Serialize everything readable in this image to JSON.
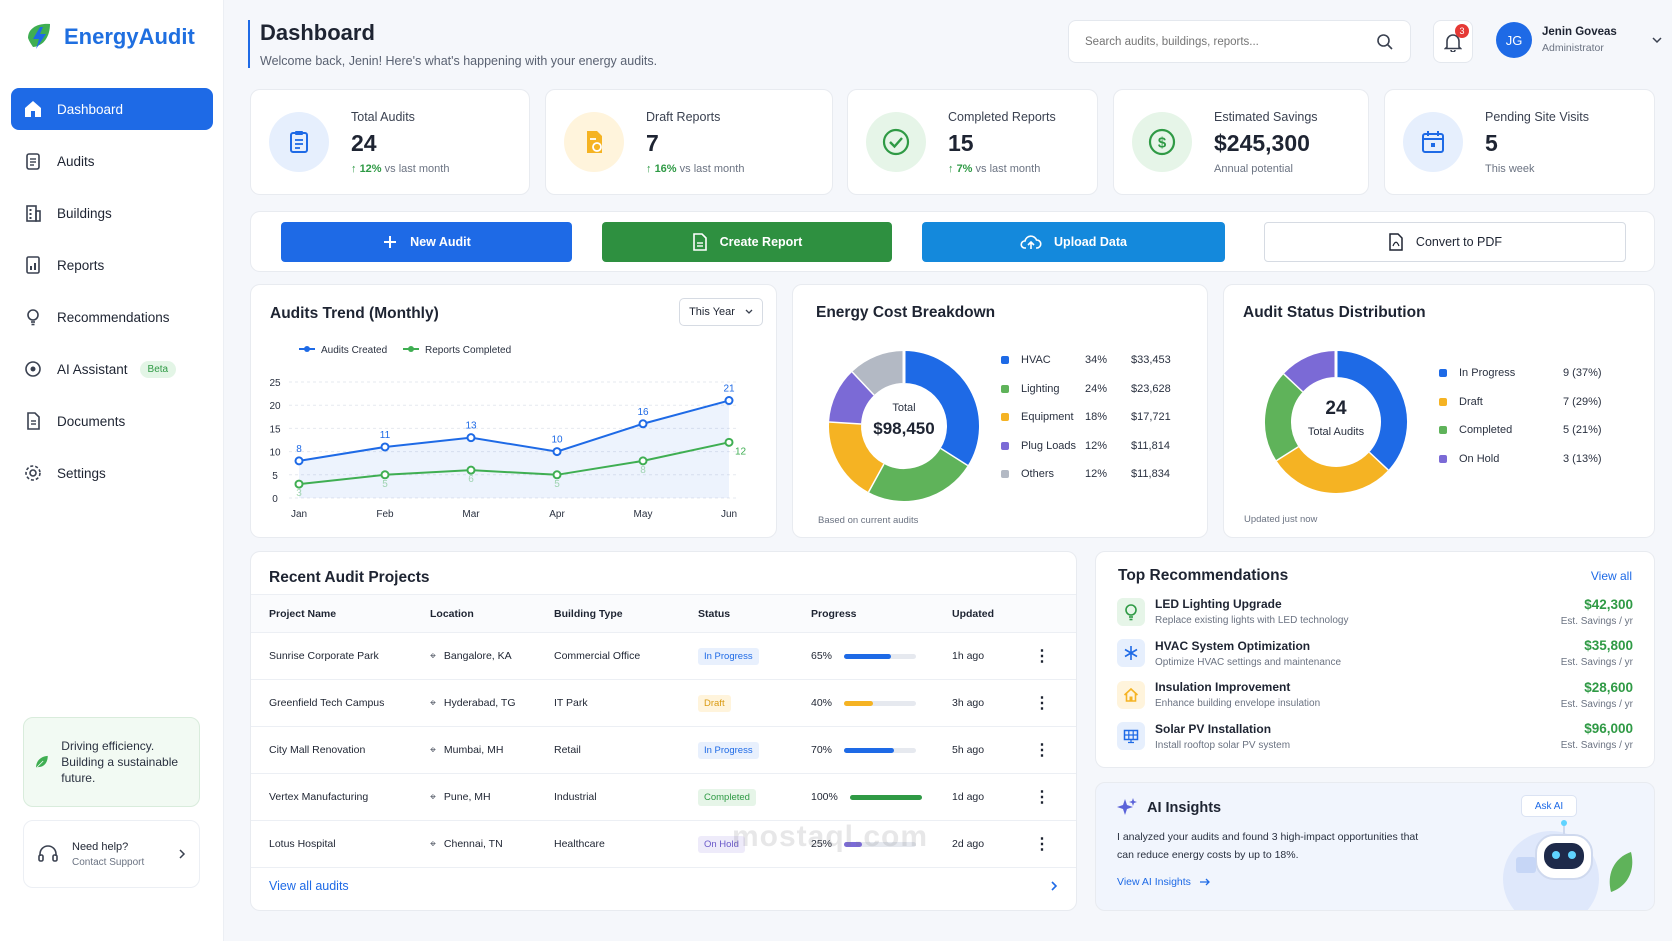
{
  "app": {
    "name": "EnergyAudit"
  },
  "sidebar": {
    "items": [
      {
        "label": "Dashboard",
        "icon": "home-icon"
      },
      {
        "label": "Audits",
        "icon": "clipboard-icon"
      },
      {
        "label": "Buildings",
        "icon": "building-icon"
      },
      {
        "label": "Reports",
        "icon": "report-icon"
      },
      {
        "label": "Recommendations",
        "icon": "lightbulb-icon"
      },
      {
        "label": "AI Assistant",
        "icon": "ai-icon",
        "badge": "Beta"
      },
      {
        "label": "Documents",
        "icon": "document-icon"
      },
      {
        "label": "Settings",
        "icon": "gear-icon"
      }
    ],
    "promo": "Driving efficiency. Building a sustainable future.",
    "help": {
      "title": "Need help?",
      "subtitle": "Contact Support"
    }
  },
  "header": {
    "title": "Dashboard",
    "subtitle": "Welcome back, Jenin! Here's what's happening with your energy audits.",
    "search_placeholder": "Search audits, buildings, reports...",
    "notifications": "3",
    "user": {
      "initials": "JG",
      "name": "Jenin Goveas",
      "role": "Administrator"
    }
  },
  "stats": [
    {
      "label": "Total Audits",
      "value": "24",
      "delta": "12%",
      "suffix": "vs last month",
      "color": "#1e6ae6"
    },
    {
      "label": "Draft Reports",
      "value": "7",
      "delta": "16%",
      "suffix": "vs last month",
      "color": "#f5b323"
    },
    {
      "label": "Completed Reports",
      "value": "15",
      "delta": "7%",
      "suffix": "vs last month",
      "color": "#2f9a45"
    },
    {
      "label": "Estimated Savings",
      "value": "$245,300",
      "delta": "",
      "suffix": "Annual potential",
      "color": "#2f9a45"
    },
    {
      "label": "Pending Site Visits",
      "value": "5",
      "delta": "",
      "suffix": "This week",
      "color": "#1e6ae6"
    }
  ],
  "actions": {
    "new_audit": "New Audit",
    "create_report": "Create Report",
    "upload_data": "Upload Data",
    "convert_pdf": "Convert to PDF"
  },
  "trend": {
    "title": "Audits Trend (Monthly)",
    "filter": "This Year",
    "legend": [
      "Audits Created",
      "Reports Completed"
    ]
  },
  "chart_data": [
    {
      "type": "line",
      "title": "Audits Trend (Monthly)",
      "x": [
        "Jan",
        "Feb",
        "Mar",
        "Apr",
        "May",
        "Jun"
      ],
      "ylim": [
        0,
        25
      ],
      "yticks": [
        0,
        5,
        10,
        15,
        20,
        25
      ],
      "series": [
        {
          "name": "Audits Created",
          "values": [
            8,
            11,
            13,
            10,
            16,
            21
          ],
          "color": "#1e6ae6"
        },
        {
          "name": "Reports Completed",
          "values": [
            3,
            5,
            6,
            5,
            8,
            12
          ],
          "color": "#3fae52"
        }
      ]
    },
    {
      "type": "pie",
      "title": "Energy Cost Breakdown",
      "center_label": "Total",
      "center_value": "$98,450",
      "note": "Based on current audits",
      "slices": [
        {
          "label": "HVAC",
          "pct": "34%",
          "amount": "$33,453",
          "value": 34,
          "color": "#1e6ae6"
        },
        {
          "label": "Lighting",
          "pct": "24%",
          "amount": "$23,628",
          "value": 24,
          "color": "#5fb35a"
        },
        {
          "label": "Equipment",
          "pct": "18%",
          "amount": "$17,721",
          "value": 18,
          "color": "#f5b323"
        },
        {
          "label": "Plug Loads",
          "pct": "12%",
          "amount": "$11,814",
          "value": 12,
          "color": "#7b6ad6"
        },
        {
          "label": "Others",
          "pct": "12%",
          "amount": "$11,834",
          "value": 12,
          "color": "#b3b9c4"
        }
      ]
    },
    {
      "type": "pie",
      "title": "Audit Status Distribution",
      "center_value": "24",
      "center_label": "Total Audits",
      "note": "Updated just now",
      "slices": [
        {
          "label": "In Progress",
          "count": "9 (37%)",
          "value": 37,
          "color": "#1e6ae6"
        },
        {
          "label": "Draft",
          "count": "7 (29%)",
          "value": 29,
          "color": "#f5b323"
        },
        {
          "label": "Completed",
          "count": "5 (21%)",
          "value": 21,
          "color": "#5fb35a"
        },
        {
          "label": "On Hold",
          "count": "3 (13%)",
          "value": 13,
          "color": "#7b6ad6"
        }
      ]
    }
  ],
  "projects": {
    "title": "Recent Audit Projects",
    "columns": [
      "Project Name",
      "Location",
      "Building Type",
      "Status",
      "Progress",
      "Updated"
    ],
    "rows": [
      {
        "name": "Sunrise Corporate Park",
        "location": "Bangalore, KA",
        "type": "Commercial Office",
        "status": "In Progress",
        "progress": "65%",
        "pct": 65,
        "color": "#1e6ae6",
        "updated": "1h ago"
      },
      {
        "name": "Greenfield Tech Campus",
        "location": "Hyderabad, TG",
        "type": "IT Park",
        "status": "Draft",
        "progress": "40%",
        "pct": 40,
        "color": "#f5b323",
        "updated": "3h ago"
      },
      {
        "name": "City Mall Renovation",
        "location": "Mumbai, MH",
        "type": "Retail",
        "status": "In Progress",
        "progress": "70%",
        "pct": 70,
        "color": "#1e6ae6",
        "updated": "5h ago"
      },
      {
        "name": "Vertex Manufacturing",
        "location": "Pune, MH",
        "type": "Industrial",
        "status": "Completed",
        "progress": "100%",
        "pct": 100,
        "color": "#2f9a45",
        "updated": "1d ago"
      },
      {
        "name": "Lotus Hospital",
        "location": "Chennai, TN",
        "type": "Healthcare",
        "status": "On Hold",
        "progress": "25%",
        "pct": 25,
        "color": "#7b6ad6",
        "updated": "2d ago"
      }
    ],
    "view_all": "View all audits"
  },
  "recommendations": {
    "title": "Top Recommendations",
    "view_all": "View all",
    "items": [
      {
        "title": "LED Lighting Upgrade",
        "desc": "Replace existing lights with LED technology",
        "value": "$42,300",
        "sub": "Est. Savings / yr",
        "icon": "lightbulb-icon"
      },
      {
        "title": "HVAC System Optimization",
        "desc": "Optimize HVAC settings and maintenance",
        "value": "$35,800",
        "sub": "Est. Savings / yr",
        "icon": "snowflake-icon"
      },
      {
        "title": "Insulation Improvement",
        "desc": "Enhance building envelope insulation",
        "value": "$28,600",
        "sub": "Est. Savings / yr",
        "icon": "house-icon"
      },
      {
        "title": "Solar PV Installation",
        "desc": "Install rooftop solar PV system",
        "value": "$96,000",
        "sub": "Est. Savings / yr",
        "icon": "solar-panel-icon"
      }
    ]
  },
  "insights": {
    "title": "AI Insights",
    "ask": "Ask AI",
    "text": "I analyzed your audits and found 3 high-impact opportunities that can reduce energy costs by up to 18%.",
    "link": "View AI Insights"
  },
  "watermark": "mostaql.com"
}
